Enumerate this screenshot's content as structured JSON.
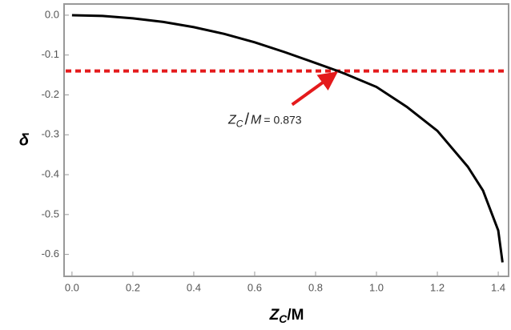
{
  "chart_data": {
    "type": "line",
    "y_label": "δ",
    "x_label": [
      "Z",
      "C",
      "/M"
    ],
    "x": [
      0,
      0.1,
      0.2,
      0.3,
      0.4,
      0.5,
      0.6,
      0.7,
      0.8,
      0.873,
      0.9,
      1.0,
      1.1,
      1.2,
      1.3,
      1.35,
      1.4,
      1.414
    ],
    "series": [
      {
        "color": "#000000",
        "values": [
          0,
          -0.002,
          -0.008,
          -0.017,
          -0.03,
          -0.047,
          -0.068,
          -0.093,
          -0.12,
          -0.14,
          -0.148,
          -0.18,
          -0.23,
          -0.29,
          -0.38,
          -0.44,
          -0.54,
          -0.62
        ]
      }
    ],
    "hline": {
      "y": -0.14,
      "color": "#e41a1c"
    },
    "annotation": {
      "parts": [
        "Z",
        "C",
        "/",
        "M",
        "="
      ],
      "x": 0.873,
      "color": "#e41a1c"
    },
    "xlim": [
      -0.026,
      1.434
    ],
    "ylim": [
      -0.655,
      0.028
    ],
    "xticks": [
      {
        "value": 0,
        "label": "0.0"
      },
      0.2,
      0.4,
      0.6,
      0.8,
      {
        "value": 1,
        "label": "1.0"
      },
      1.2,
      1.4
    ],
    "yticks": [
      {
        "value": 0,
        "label": "0.0"
      },
      -0.1,
      -0.2,
      -0.3,
      -0.4,
      -0.5,
      -0.6
    ]
  }
}
